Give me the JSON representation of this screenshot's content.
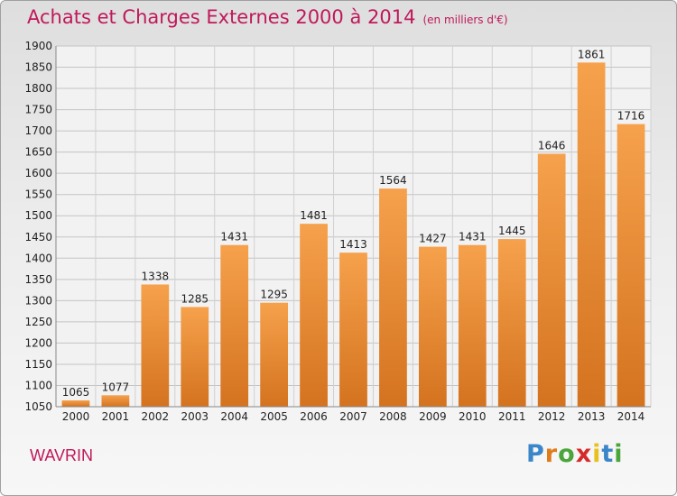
{
  "header": {
    "title": "Achats et Charges Externes 2000 à 2014",
    "subtitle": "(en milliers d'€)"
  },
  "footer": {
    "place": "WAVRIN",
    "logo_text": "Proxiti"
  },
  "colors": {
    "bar_top": "#f6a14c",
    "bar_bottom": "#d4731f",
    "title": "#c0185a"
  },
  "chart_data": {
    "type": "bar",
    "categories": [
      "2000",
      "2001",
      "2002",
      "2003",
      "2004",
      "2005",
      "2006",
      "2007",
      "2008",
      "2009",
      "2010",
      "2011",
      "2012",
      "2013",
      "2014"
    ],
    "values": [
      1065,
      1077,
      1338,
      1285,
      1431,
      1295,
      1481,
      1413,
      1564,
      1427,
      1431,
      1445,
      1646,
      1861,
      1716
    ],
    "ylim": [
      1050,
      1900
    ],
    "yticks": [
      1050,
      1100,
      1150,
      1200,
      1250,
      1300,
      1350,
      1400,
      1450,
      1500,
      1550,
      1600,
      1650,
      1700,
      1750,
      1800,
      1850,
      1900
    ],
    "grid": true,
    "data_labels": true
  }
}
